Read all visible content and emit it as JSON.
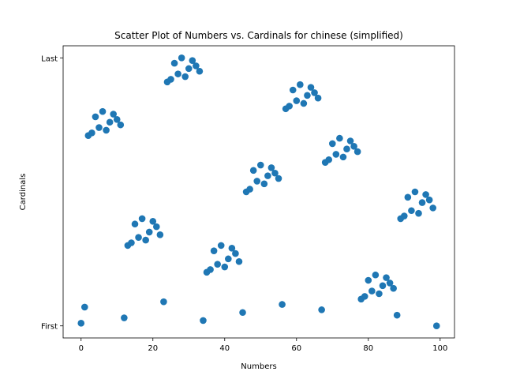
{
  "chart_data": {
    "type": "scatter",
    "title": "Scatter Plot of Numbers vs. Cardinals for chinese (simplified)",
    "xlabel": "Numbers",
    "ylabel": "Cardinals",
    "xlim": [
      -5,
      104
    ],
    "ylim": [
      -0.045,
      1.045
    ],
    "x_ticks": [
      0,
      20,
      40,
      60,
      80,
      100
    ],
    "x_tick_labels": [
      "0",
      "20",
      "40",
      "60",
      "80",
      "100"
    ],
    "y_ticks": [
      0,
      1
    ],
    "y_tick_labels": [
      "First",
      "Last"
    ],
    "marker_color": "#1f77b4",
    "grid": false,
    "legend": "none",
    "points": [
      {
        "x": 0,
        "y": 0.01
      },
      {
        "x": 1,
        "y": 0.07
      },
      {
        "x": 2,
        "y": 0.71
      },
      {
        "x": 3,
        "y": 0.72
      },
      {
        "x": 4,
        "y": 0.78
      },
      {
        "x": 5,
        "y": 0.74
      },
      {
        "x": 6,
        "y": 0.8
      },
      {
        "x": 7,
        "y": 0.73
      },
      {
        "x": 8,
        "y": 0.76
      },
      {
        "x": 9,
        "y": 0.79
      },
      {
        "x": 10,
        "y": 0.77
      },
      {
        "x": 11,
        "y": 0.75
      },
      {
        "x": 12,
        "y": 0.03
      },
      {
        "x": 13,
        "y": 0.3
      },
      {
        "x": 14,
        "y": 0.31
      },
      {
        "x": 15,
        "y": 0.38
      },
      {
        "x": 16,
        "y": 0.33
      },
      {
        "x": 17,
        "y": 0.4
      },
      {
        "x": 18,
        "y": 0.32
      },
      {
        "x": 19,
        "y": 0.35
      },
      {
        "x": 20,
        "y": 0.39
      },
      {
        "x": 21,
        "y": 0.37
      },
      {
        "x": 22,
        "y": 0.34
      },
      {
        "x": 23,
        "y": 0.09
      },
      {
        "x": 24,
        "y": 0.91
      },
      {
        "x": 25,
        "y": 0.92
      },
      {
        "x": 26,
        "y": 0.98
      },
      {
        "x": 27,
        "y": 0.94
      },
      {
        "x": 28,
        "y": 1.0
      },
      {
        "x": 29,
        "y": 0.93
      },
      {
        "x": 30,
        "y": 0.96
      },
      {
        "x": 31,
        "y": 0.99
      },
      {
        "x": 32,
        "y": 0.97
      },
      {
        "x": 33,
        "y": 0.95
      },
      {
        "x": 34,
        "y": 0.02
      },
      {
        "x": 35,
        "y": 0.2
      },
      {
        "x": 36,
        "y": 0.21
      },
      {
        "x": 37,
        "y": 0.28
      },
      {
        "x": 38,
        "y": 0.23
      },
      {
        "x": 39,
        "y": 0.3
      },
      {
        "x": 40,
        "y": 0.22
      },
      {
        "x": 41,
        "y": 0.25
      },
      {
        "x": 42,
        "y": 0.29
      },
      {
        "x": 43,
        "y": 0.27
      },
      {
        "x": 44,
        "y": 0.24
      },
      {
        "x": 45,
        "y": 0.05
      },
      {
        "x": 46,
        "y": 0.5
      },
      {
        "x": 47,
        "y": 0.51
      },
      {
        "x": 48,
        "y": 0.58
      },
      {
        "x": 49,
        "y": 0.54
      },
      {
        "x": 50,
        "y": 0.6
      },
      {
        "x": 51,
        "y": 0.53
      },
      {
        "x": 52,
        "y": 0.56
      },
      {
        "x": 53,
        "y": 0.59
      },
      {
        "x": 54,
        "y": 0.57
      },
      {
        "x": 55,
        "y": 0.55
      },
      {
        "x": 56,
        "y": 0.08
      },
      {
        "x": 57,
        "y": 0.81
      },
      {
        "x": 58,
        "y": 0.82
      },
      {
        "x": 59,
        "y": 0.88
      },
      {
        "x": 60,
        "y": 0.84
      },
      {
        "x": 61,
        "y": 0.9
      },
      {
        "x": 62,
        "y": 0.83
      },
      {
        "x": 63,
        "y": 0.86
      },
      {
        "x": 64,
        "y": 0.89
      },
      {
        "x": 65,
        "y": 0.87
      },
      {
        "x": 66,
        "y": 0.85
      },
      {
        "x": 67,
        "y": 0.06
      },
      {
        "x": 68,
        "y": 0.61
      },
      {
        "x": 69,
        "y": 0.62
      },
      {
        "x": 70,
        "y": 0.68
      },
      {
        "x": 71,
        "y": 0.64
      },
      {
        "x": 72,
        "y": 0.7
      },
      {
        "x": 73,
        "y": 0.63
      },
      {
        "x": 74,
        "y": 0.66
      },
      {
        "x": 75,
        "y": 0.69
      },
      {
        "x": 76,
        "y": 0.67
      },
      {
        "x": 77,
        "y": 0.65
      },
      {
        "x": 78,
        "y": 0.1
      },
      {
        "x": 79,
        "y": 0.11
      },
      {
        "x": 80,
        "y": 0.17
      },
      {
        "x": 81,
        "y": 0.13
      },
      {
        "x": 82,
        "y": 0.19
      },
      {
        "x": 83,
        "y": 0.12
      },
      {
        "x": 84,
        "y": 0.15
      },
      {
        "x": 85,
        "y": 0.18
      },
      {
        "x": 86,
        "y": 0.16
      },
      {
        "x": 87,
        "y": 0.14
      },
      {
        "x": 88,
        "y": 0.04
      },
      {
        "x": 89,
        "y": 0.4
      },
      {
        "x": 90,
        "y": 0.41
      },
      {
        "x": 91,
        "y": 0.48
      },
      {
        "x": 92,
        "y": 0.43
      },
      {
        "x": 93,
        "y": 0.5
      },
      {
        "x": 94,
        "y": 0.42
      },
      {
        "x": 95,
        "y": 0.46
      },
      {
        "x": 96,
        "y": 0.49
      },
      {
        "x": 97,
        "y": 0.47
      },
      {
        "x": 98,
        "y": 0.44
      },
      {
        "x": 99,
        "y": 0.0
      }
    ]
  }
}
